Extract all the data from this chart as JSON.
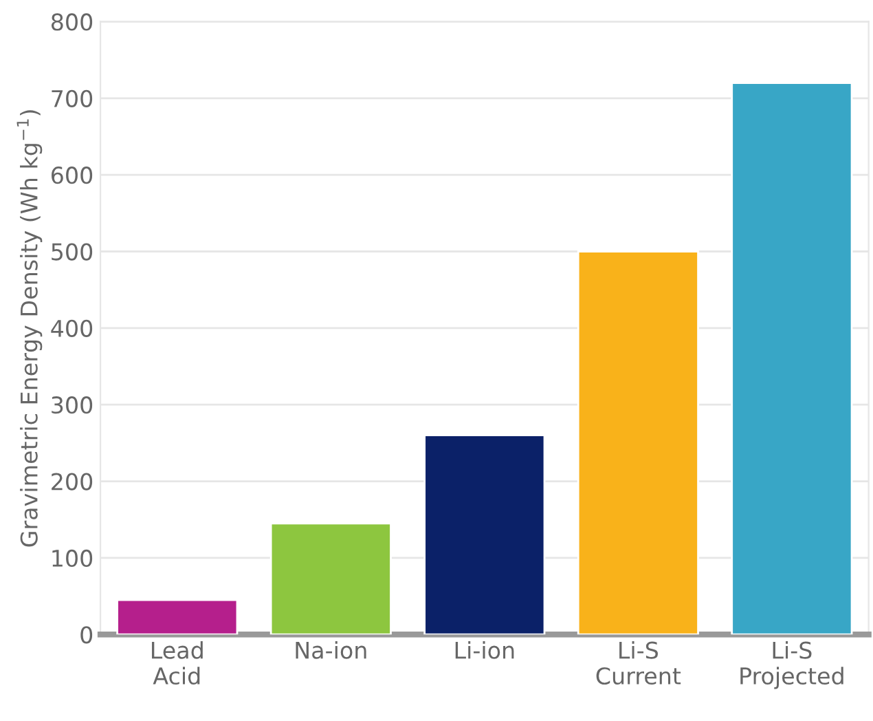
{
  "chart_data": {
    "type": "bar",
    "ylabel": "Gravimetric Energy Density (Wh kg$^{−1}$)",
    "categories": [
      "Lead\nAcid",
      "Na-ion",
      "Li-ion",
      "Li-S\nCurrent",
      "Li-S\nProjected"
    ],
    "values": [
      45,
      145,
      260,
      500,
      720
    ],
    "colors": [
      "#b51f8c",
      "#8dc63f",
      "#0b2168",
      "#f9b21a",
      "#38a6c6"
    ],
    "ylim": [
      0,
      800
    ],
    "yticks": [
      0,
      100,
      200,
      300,
      400,
      500,
      600,
      700,
      800
    ],
    "grid": "y"
  }
}
